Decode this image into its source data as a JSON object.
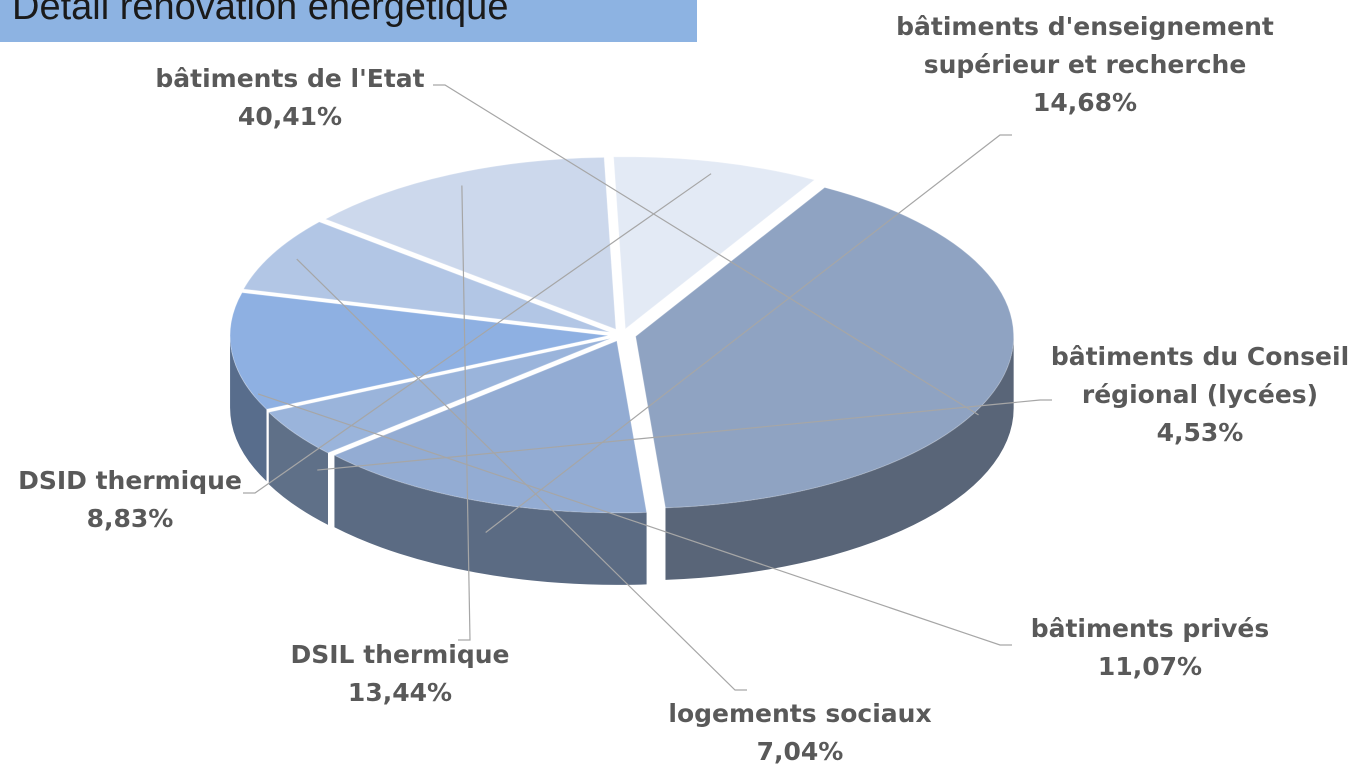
{
  "chart_data": {
    "type": "pie",
    "title": "Détail rénovation énergétique",
    "categories": [
      "bâtiments de l'Etat",
      "bâtiments d'enseignement supérieur et recherche",
      "bâtiments du Conseil régional (lycées)",
      "bâtiments privés",
      "logements sociaux",
      "DSIL thermique",
      "DSID thermique"
    ],
    "values": [
      40.41,
      14.68,
      4.53,
      11.07,
      7.04,
      13.44,
      8.83
    ],
    "value_labels": [
      "40,41%",
      "14,68%",
      "4,53%",
      "11,07%",
      "7,04%",
      "13,44%",
      "8,83%"
    ],
    "colors": [
      "#8fa3c2",
      "#93acd3",
      "#9ab4db",
      "#8eb0e2",
      "#b2c6e5",
      "#ccd8ec",
      "#e3eaf5"
    ]
  }
}
